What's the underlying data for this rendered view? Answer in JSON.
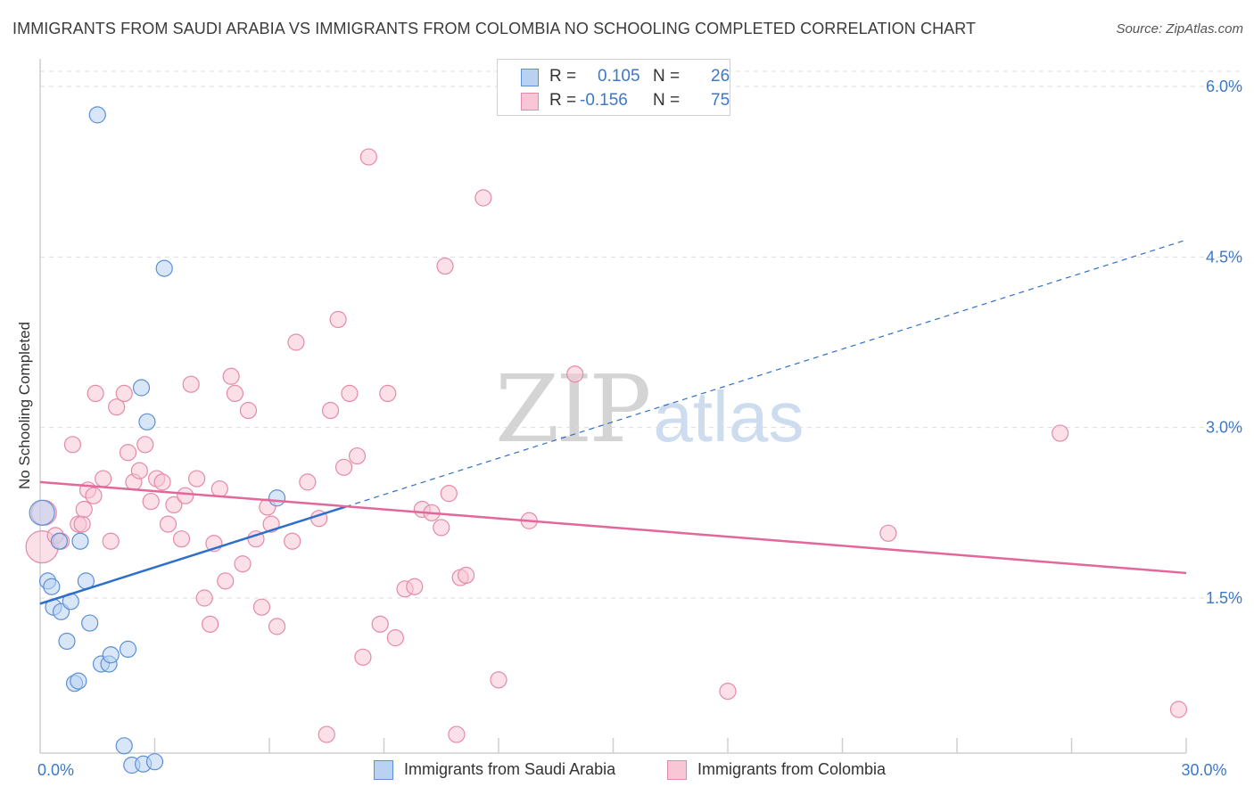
{
  "header": {
    "title": "IMMIGRANTS FROM SAUDI ARABIA VS IMMIGRANTS FROM COLOMBIA NO SCHOOLING COMPLETED CORRELATION CHART",
    "source": "Source: ZipAtlas.com"
  },
  "watermark": {
    "zip": "ZIP",
    "atlas": "atlas"
  },
  "legend": {
    "r_label": "R =",
    "n_label": "N =",
    "saudi": {
      "r": "0.105",
      "n": "26"
    },
    "colombia": {
      "r": "-0.156",
      "n": "75"
    }
  },
  "colors": {
    "saudi_fill": "#b9d2f2",
    "saudi_stroke": "#5b90d6",
    "saudi_line": "#2f6fcc",
    "colombia_fill": "#f8c6d5",
    "colombia_stroke": "#e58aa8",
    "colombia_line": "#e2679a",
    "grid": "#dcdcdc",
    "tick_text": "#3d78c9"
  },
  "chart_data": {
    "type": "scatter",
    "title": "IMMIGRANTS FROM SAUDI ARABIA VS IMMIGRANTS FROM COLOMBIA NO SCHOOLING COMPLETED CORRELATION CHART",
    "xlabel": "",
    "ylabel": "No Schooling Completed",
    "xlim": [
      0,
      30
    ],
    "ylim": [
      0,
      6.2
    ],
    "x_tick_labels": [
      {
        "value": 0,
        "label": "0.0%"
      },
      {
        "value": 30,
        "label": "30.0%"
      }
    ],
    "y_tick_labels": [
      {
        "value": 1.5,
        "label": "1.5%"
      },
      {
        "value": 3.0,
        "label": "3.0%"
      },
      {
        "value": 4.5,
        "label": "4.5%"
      },
      {
        "value": 6.0,
        "label": "6.0%"
      }
    ],
    "x_minor_ticks": [
      3,
      6,
      9,
      12,
      15,
      18,
      21,
      24,
      27,
      30
    ],
    "grid": true,
    "series": [
      {
        "name": "Immigrants from Saudi Arabia",
        "color": "saudi",
        "trend": {
          "x0": 0,
          "y0": 1.45,
          "x_solid_end": 8.0,
          "x1": 30,
          "y1": 4.65
        },
        "points": [
          [
            0.05,
            2.25,
            14
          ],
          [
            0.2,
            1.65,
            9
          ],
          [
            0.3,
            1.6,
            9
          ],
          [
            0.5,
            2.0,
            9
          ],
          [
            0.35,
            1.42,
            9
          ],
          [
            0.55,
            1.38,
            9
          ],
          [
            0.7,
            1.12,
            9
          ],
          [
            0.8,
            1.47,
            9
          ],
          [
            0.9,
            0.75,
            9
          ],
          [
            1.0,
            0.77,
            9
          ],
          [
            1.05,
            2.0,
            9
          ],
          [
            1.2,
            1.65,
            9
          ],
          [
            1.3,
            1.28,
            9
          ],
          [
            1.5,
            5.75,
            9
          ],
          [
            1.6,
            0.92,
            9
          ],
          [
            1.8,
            0.92,
            9
          ],
          [
            1.85,
            1.0,
            9
          ],
          [
            2.3,
            1.05,
            9
          ],
          [
            2.2,
            0.2,
            9
          ],
          [
            2.4,
            0.03,
            9
          ],
          [
            2.7,
            0.04,
            9
          ],
          [
            3.0,
            0.06,
            9
          ],
          [
            2.65,
            3.35,
            9
          ],
          [
            2.8,
            3.05,
            9
          ],
          [
            3.25,
            4.4,
            9
          ],
          [
            6.2,
            2.38,
            9
          ]
        ]
      },
      {
        "name": "Immigrants from Colombia",
        "color": "colombia",
        "trend": {
          "x0": 0,
          "y0": 2.52,
          "x1": 30,
          "y1": 1.72
        },
        "points": [
          [
            0.05,
            1.95,
            18
          ],
          [
            0.1,
            2.25,
            14
          ],
          [
            0.4,
            2.05,
            9
          ],
          [
            0.55,
            2.0,
            9
          ],
          [
            0.85,
            2.85,
            9
          ],
          [
            1.0,
            2.15,
            9
          ],
          [
            1.1,
            2.15,
            9
          ],
          [
            1.15,
            2.28,
            9
          ],
          [
            1.25,
            2.45,
            9
          ],
          [
            1.4,
            2.4,
            9
          ],
          [
            1.45,
            3.3,
            9
          ],
          [
            1.65,
            2.55,
            9
          ],
          [
            1.85,
            2.0,
            9
          ],
          [
            2.0,
            3.18,
            9
          ],
          [
            2.2,
            3.3,
            9
          ],
          [
            2.3,
            2.78,
            9
          ],
          [
            2.45,
            2.52,
            9
          ],
          [
            2.6,
            2.62,
            9
          ],
          [
            2.75,
            2.85,
            9
          ],
          [
            2.9,
            2.35,
            9
          ],
          [
            3.05,
            2.55,
            9
          ],
          [
            3.2,
            2.52,
            9
          ],
          [
            3.35,
            2.15,
            9
          ],
          [
            3.5,
            2.32,
            9
          ],
          [
            3.7,
            2.02,
            9
          ],
          [
            3.8,
            2.4,
            9
          ],
          [
            3.95,
            3.38,
            9
          ],
          [
            4.1,
            2.55,
            9
          ],
          [
            4.3,
            1.5,
            9
          ],
          [
            4.45,
            1.27,
            9
          ],
          [
            4.55,
            1.98,
            9
          ],
          [
            4.7,
            2.46,
            9
          ],
          [
            4.85,
            1.65,
            9
          ],
          [
            5.0,
            3.45,
            9
          ],
          [
            5.1,
            3.3,
            9
          ],
          [
            5.3,
            1.8,
            9
          ],
          [
            5.45,
            3.15,
            9
          ],
          [
            5.65,
            2.02,
            9
          ],
          [
            5.8,
            1.42,
            9
          ],
          [
            5.95,
            2.3,
            9
          ],
          [
            6.05,
            2.15,
            9
          ],
          [
            6.2,
            1.25,
            9
          ],
          [
            6.6,
            2.0,
            9
          ],
          [
            6.7,
            3.75,
            9
          ],
          [
            7.0,
            2.52,
            9
          ],
          [
            7.3,
            2.2,
            9
          ],
          [
            7.5,
            0.3,
            9
          ],
          [
            7.6,
            3.15,
            9
          ],
          [
            7.8,
            3.95,
            9
          ],
          [
            7.95,
            2.65,
            9
          ],
          [
            8.1,
            3.3,
            9
          ],
          [
            8.3,
            2.75,
            9
          ],
          [
            8.45,
            0.98,
            9
          ],
          [
            8.6,
            5.38,
            9
          ],
          [
            8.9,
            1.27,
            9
          ],
          [
            9.1,
            3.3,
            9
          ],
          [
            9.3,
            1.15,
            9
          ],
          [
            9.55,
            1.58,
            9
          ],
          [
            9.8,
            1.6,
            9
          ],
          [
            10.0,
            2.28,
            9
          ],
          [
            10.25,
            2.25,
            9
          ],
          [
            10.5,
            2.12,
            9
          ],
          [
            10.6,
            4.42,
            9
          ],
          [
            10.7,
            2.42,
            9
          ],
          [
            10.9,
            0.3,
            9
          ],
          [
            11.0,
            1.68,
            9
          ],
          [
            11.15,
            1.7,
            9
          ],
          [
            11.6,
            5.02,
            9
          ],
          [
            12.0,
            0.78,
            9
          ],
          [
            12.8,
            2.18,
            9
          ],
          [
            14.0,
            3.47,
            9
          ],
          [
            18.0,
            0.68,
            9
          ],
          [
            22.2,
            2.07,
            9
          ],
          [
            26.7,
            2.95,
            9
          ],
          [
            29.8,
            0.52,
            9
          ]
        ]
      }
    ]
  },
  "bottom_legend": {
    "saudi": "Immigrants from Saudi Arabia",
    "colombia": "Immigrants from Colombia"
  }
}
